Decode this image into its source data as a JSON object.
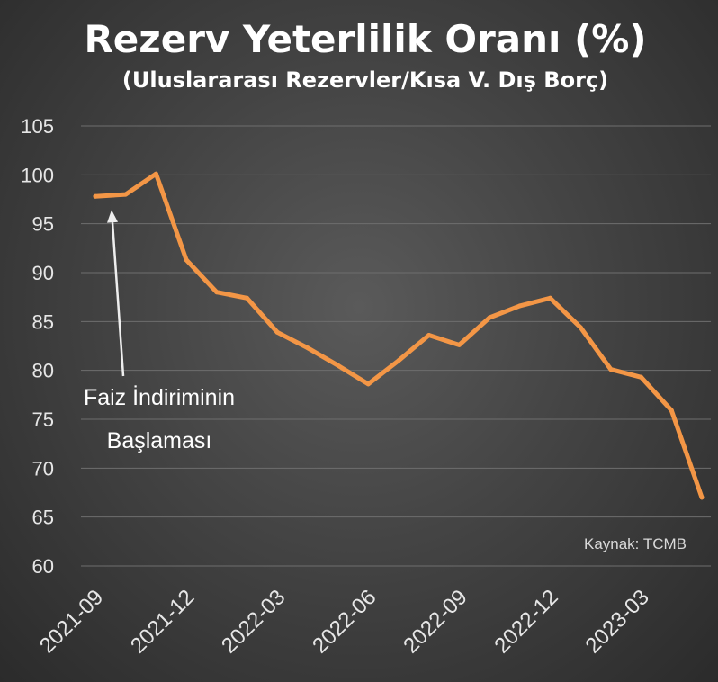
{
  "chart_data": {
    "type": "line",
    "title": "Rezerv Yeterlilik Oranı (%)",
    "subtitle": "(Uluslararası Rezervler/Kısa V. Dış Borç)",
    "xlabel": "",
    "ylabel": "",
    "ylim": [
      60,
      105
    ],
    "y_ticks": [
      "60",
      "65",
      "70",
      "75",
      "80",
      "85",
      "90",
      "95",
      "100",
      "105"
    ],
    "x_tick_labels": [
      "2021-09",
      "2021-12",
      "2022-03",
      "2022-06",
      "2022-09",
      "2022-12",
      "2023-03"
    ],
    "x": [
      "2021-09",
      "2021-10",
      "2021-11",
      "2021-12",
      "2022-01",
      "2022-02",
      "2022-03",
      "2022-04",
      "2022-05",
      "2022-06",
      "2022-07",
      "2022-08",
      "2022-09",
      "2022-10",
      "2022-11",
      "2022-12",
      "2023-01",
      "2023-02",
      "2023-03",
      "2023-04",
      "2023-05"
    ],
    "series": [
      {
        "values": [
          97.8,
          98.0,
          100.1,
          91.3,
          88.0,
          87.4,
          83.9,
          82.3,
          80.5,
          78.6,
          81.0,
          83.6,
          82.6,
          85.4,
          86.6,
          87.4,
          84.4,
          80.1,
          79.3,
          75.9,
          67.0
        ]
      }
    ],
    "grid": true,
    "annotation": {
      "line1": "Faiz İndiriminin",
      "line2": "Başlaması",
      "target_x": "2021-09"
    },
    "source": "Kaynak: TCMB",
    "colors": {
      "line": "#F39646",
      "grid": "#6e6e6e",
      "arrow": "#eeeeee",
      "text": "#ffffff"
    }
  }
}
